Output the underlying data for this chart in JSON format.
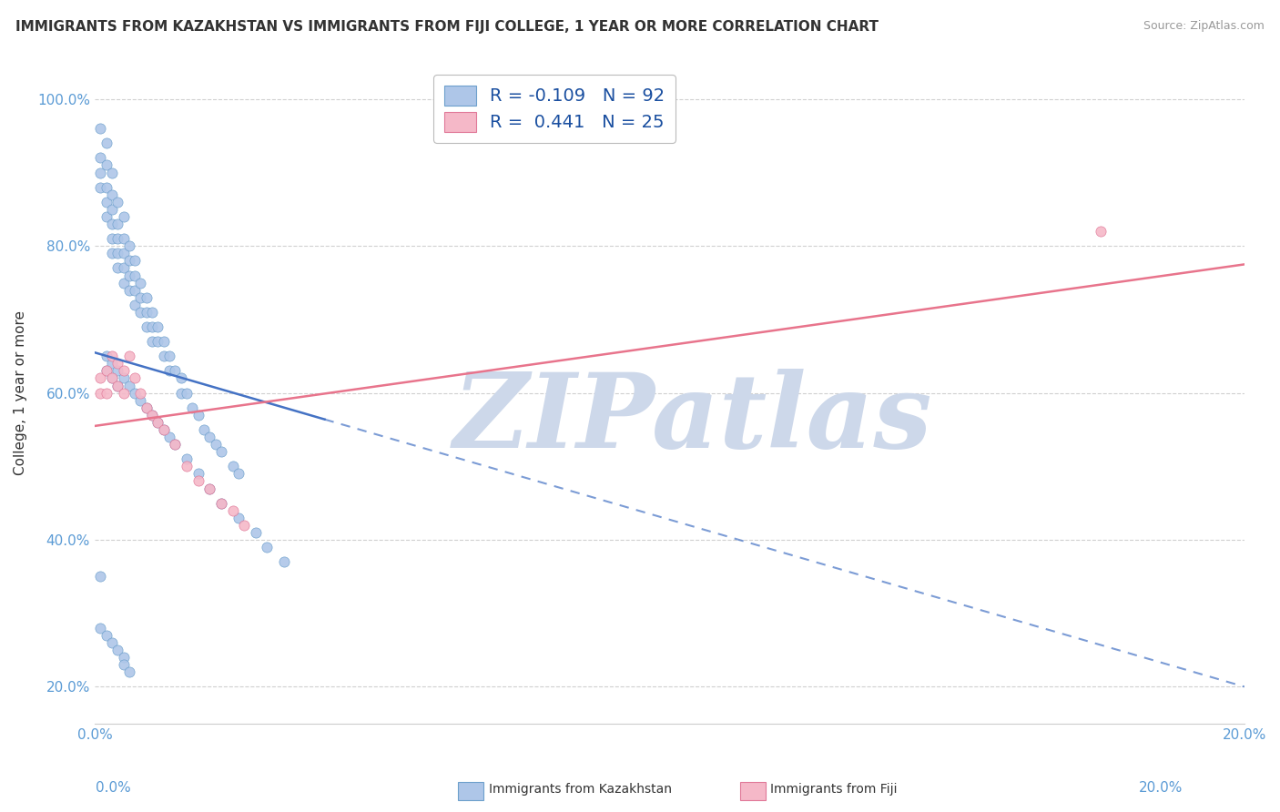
{
  "title": "IMMIGRANTS FROM KAZAKHSTAN VS IMMIGRANTS FROM FIJI COLLEGE, 1 YEAR OR MORE CORRELATION CHART",
  "source": "Source: ZipAtlas.com",
  "ylabel": "College, 1 year or more",
  "xlim": [
    0.0,
    0.2
  ],
  "ylim": [
    0.15,
    1.05
  ],
  "xticks": [
    0.0,
    0.025,
    0.05,
    0.075,
    0.1,
    0.125,
    0.15,
    0.175,
    0.2
  ],
  "xticklabels": [
    "0.0%",
    "",
    "",
    "",
    "",
    "",
    "",
    "",
    "20.0%"
  ],
  "yticks": [
    0.2,
    0.4,
    0.6,
    0.8,
    1.0
  ],
  "yticklabels": [
    "20.0%",
    "40.0%",
    "60.0%",
    "80.0%",
    "100.0%"
  ],
  "kaz_R": -0.109,
  "kaz_N": 92,
  "fiji_R": 0.441,
  "fiji_N": 25,
  "kaz_color": "#aec6e8",
  "kaz_edge": "#6da0cc",
  "fiji_color": "#f5b8c8",
  "fiji_edge": "#e07898",
  "trend_kaz_color": "#4472c4",
  "trend_fiji_color": "#e8748c",
  "watermark_color": "#cdd8ea",
  "background_color": "#ffffff",
  "grid_color": "#d0d0d0",
  "text_color": "#333333",
  "axis_color": "#5b9bd5",
  "legend_text_color": "#1a4fa0",
  "kaz_x": [
    0.001,
    0.001,
    0.001,
    0.001,
    0.002,
    0.002,
    0.002,
    0.002,
    0.002,
    0.003,
    0.003,
    0.003,
    0.003,
    0.003,
    0.003,
    0.004,
    0.004,
    0.004,
    0.004,
    0.004,
    0.005,
    0.005,
    0.005,
    0.005,
    0.005,
    0.006,
    0.006,
    0.006,
    0.006,
    0.007,
    0.007,
    0.007,
    0.007,
    0.008,
    0.008,
    0.008,
    0.009,
    0.009,
    0.009,
    0.01,
    0.01,
    0.01,
    0.011,
    0.011,
    0.012,
    0.012,
    0.013,
    0.013,
    0.014,
    0.015,
    0.015,
    0.016,
    0.017,
    0.018,
    0.019,
    0.02,
    0.021,
    0.022,
    0.024,
    0.025,
    0.002,
    0.002,
    0.003,
    0.003,
    0.004,
    0.004,
    0.005,
    0.006,
    0.007,
    0.008,
    0.009,
    0.01,
    0.011,
    0.012,
    0.013,
    0.014,
    0.016,
    0.018,
    0.02,
    0.022,
    0.025,
    0.028,
    0.03,
    0.033,
    0.001,
    0.001,
    0.002,
    0.003,
    0.004,
    0.005,
    0.005,
    0.006
  ],
  "kaz_y": [
    0.96,
    0.92,
    0.9,
    0.88,
    0.94,
    0.91,
    0.88,
    0.86,
    0.84,
    0.9,
    0.87,
    0.85,
    0.83,
    0.81,
    0.79,
    0.86,
    0.83,
    0.81,
    0.79,
    0.77,
    0.84,
    0.81,
    0.79,
    0.77,
    0.75,
    0.8,
    0.78,
    0.76,
    0.74,
    0.78,
    0.76,
    0.74,
    0.72,
    0.75,
    0.73,
    0.71,
    0.73,
    0.71,
    0.69,
    0.71,
    0.69,
    0.67,
    0.69,
    0.67,
    0.67,
    0.65,
    0.65,
    0.63,
    0.63,
    0.62,
    0.6,
    0.6,
    0.58,
    0.57,
    0.55,
    0.54,
    0.53,
    0.52,
    0.5,
    0.49,
    0.65,
    0.63,
    0.64,
    0.62,
    0.63,
    0.61,
    0.62,
    0.61,
    0.6,
    0.59,
    0.58,
    0.57,
    0.56,
    0.55,
    0.54,
    0.53,
    0.51,
    0.49,
    0.47,
    0.45,
    0.43,
    0.41,
    0.39,
    0.37,
    0.35,
    0.28,
    0.27,
    0.26,
    0.25,
    0.24,
    0.23,
    0.22
  ],
  "fiji_x": [
    0.001,
    0.001,
    0.002,
    0.002,
    0.003,
    0.003,
    0.004,
    0.004,
    0.005,
    0.005,
    0.006,
    0.007,
    0.008,
    0.009,
    0.01,
    0.011,
    0.012,
    0.014,
    0.016,
    0.018,
    0.02,
    0.022,
    0.024,
    0.026,
    0.175
  ],
  "fiji_y": [
    0.62,
    0.6,
    0.63,
    0.6,
    0.65,
    0.62,
    0.64,
    0.61,
    0.63,
    0.6,
    0.65,
    0.62,
    0.6,
    0.58,
    0.57,
    0.56,
    0.55,
    0.53,
    0.5,
    0.48,
    0.47,
    0.45,
    0.44,
    0.42,
    0.82
  ],
  "kaz_trend_x0": 0.0,
  "kaz_trend_y0": 0.655,
  "kaz_trend_x1": 0.2,
  "kaz_trend_y1": 0.2,
  "fiji_trend_x0": 0.0,
  "fiji_trend_y0": 0.555,
  "fiji_trend_x1": 0.2,
  "fiji_trend_y1": 0.775
}
